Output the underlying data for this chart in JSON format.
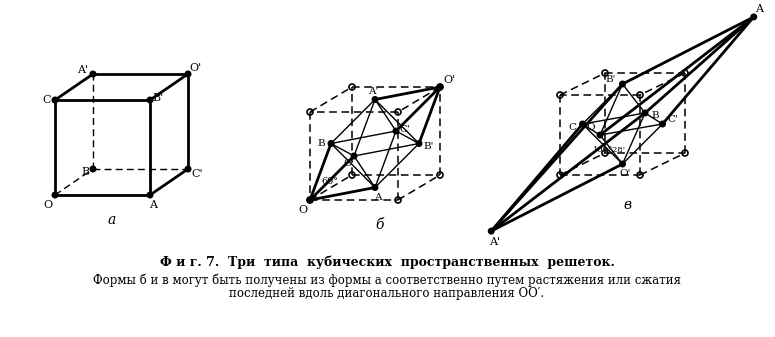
{
  "bg_color": "#ffffff",
  "caption_title": "Ф и г. 7.  Три  типа  кубических  пространственных  решеток.",
  "caption_body": "Формы б и в могут быть получены из формы а соответственно путем растяжения или сжатия",
  "caption_body2": "последней вдоль диагонального направления ОО′.",
  "label_a": "a",
  "label_b": "б",
  "label_v": "в"
}
